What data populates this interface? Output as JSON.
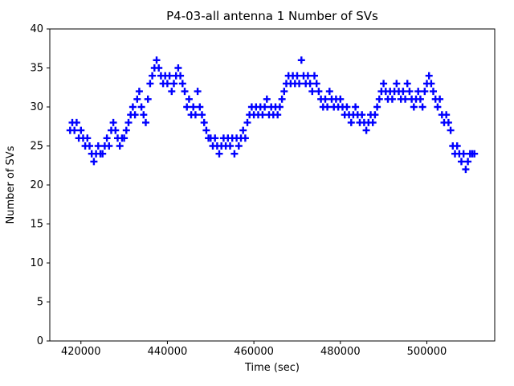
{
  "chart_data": {
    "type": "scatter",
    "title": "P4-03-all antenna 1 Number of SVs",
    "xlabel": "Time (sec)",
    "ylabel": "Number of SVs",
    "xlim": [
      412800,
      515700
    ],
    "ylim": [
      0,
      40
    ],
    "xticks": [
      420000,
      440000,
      460000,
      480000,
      500000
    ],
    "xtick_labels": [
      "420000",
      "440000",
      "460000",
      "480000",
      "500000"
    ],
    "yticks": [
      0,
      5,
      10,
      15,
      20,
      25,
      30,
      35,
      40
    ],
    "ytick_labels": [
      "0",
      "5",
      "10",
      "15",
      "20",
      "25",
      "30",
      "35",
      "40"
    ],
    "grid": false,
    "legend": "none",
    "marker": "plus",
    "marker_color": "#0000ff",
    "series": [
      {
        "name": "Number of SVs",
        "t_start": 417500,
        "t_step": 500,
        "values": [
          27,
          28,
          27,
          28,
          26,
          27,
          26,
          25,
          26,
          25,
          24,
          23,
          24,
          25,
          24,
          24,
          25,
          26,
          25,
          27,
          28,
          27,
          26,
          25,
          26,
          26,
          27,
          28,
          29,
          30,
          29,
          31,
          32,
          30,
          29,
          28,
          31,
          33,
          34,
          35,
          36,
          35,
          34,
          33,
          34,
          33,
          34,
          32,
          33,
          34,
          35,
          34,
          33,
          32,
          30,
          31,
          29,
          30,
          29,
          32,
          30,
          29,
          28,
          27,
          26,
          26,
          25,
          26,
          25,
          24,
          25,
          26,
          25,
          26,
          25,
          26,
          24,
          26,
          25,
          26,
          27,
          26,
          28,
          29,
          30,
          29,
          30,
          29,
          30,
          29,
          30,
          31,
          29,
          30,
          29,
          30,
          29,
          30,
          31,
          32,
          33,
          34,
          33,
          34,
          33,
          34,
          33,
          36,
          34,
          33,
          34,
          33,
          32,
          34,
          33,
          32,
          31,
          30,
          31,
          30,
          32,
          31,
          30,
          31,
          30,
          31,
          30,
          29,
          30,
          29,
          28,
          29,
          30,
          29,
          28,
          29,
          28,
          27,
          28,
          29,
          28,
          29,
          30,
          31,
          32,
          33,
          32,
          31,
          32,
          31,
          32,
          33,
          32,
          31,
          32,
          31,
          33,
          32,
          31,
          30,
          31,
          32,
          31,
          30,
          32,
          33,
          34,
          33,
          32,
          31,
          30,
          31,
          29,
          28,
          29,
          28,
          27,
          25,
          24,
          25,
          24,
          23,
          24,
          22,
          23,
          24,
          24,
          24
        ]
      }
    ]
  }
}
